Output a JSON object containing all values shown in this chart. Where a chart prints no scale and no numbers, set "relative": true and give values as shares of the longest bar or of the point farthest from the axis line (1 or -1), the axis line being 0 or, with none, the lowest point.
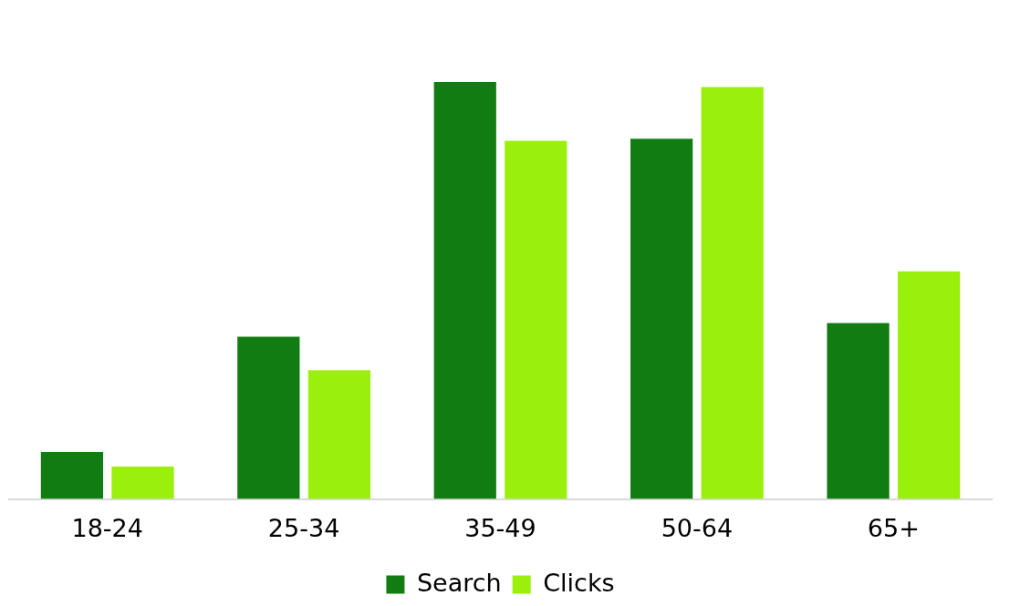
{
  "chart_data": {
    "type": "bar",
    "relative": true,
    "categories": [
      "18-24",
      "25-34",
      "35-49",
      "50-64",
      "65+"
    ],
    "series": [
      {
        "name": "Search",
        "color": "#117c11",
        "values": [
          0.113,
          0.389,
          1,
          0.864,
          0.422
        ]
      },
      {
        "name": "Clicks",
        "color": "#9bef0c",
        "values": [
          0.078,
          0.309,
          0.859,
          0.988,
          0.546
        ]
      }
    ],
    "legend": "bottom",
    "grid": false
  }
}
